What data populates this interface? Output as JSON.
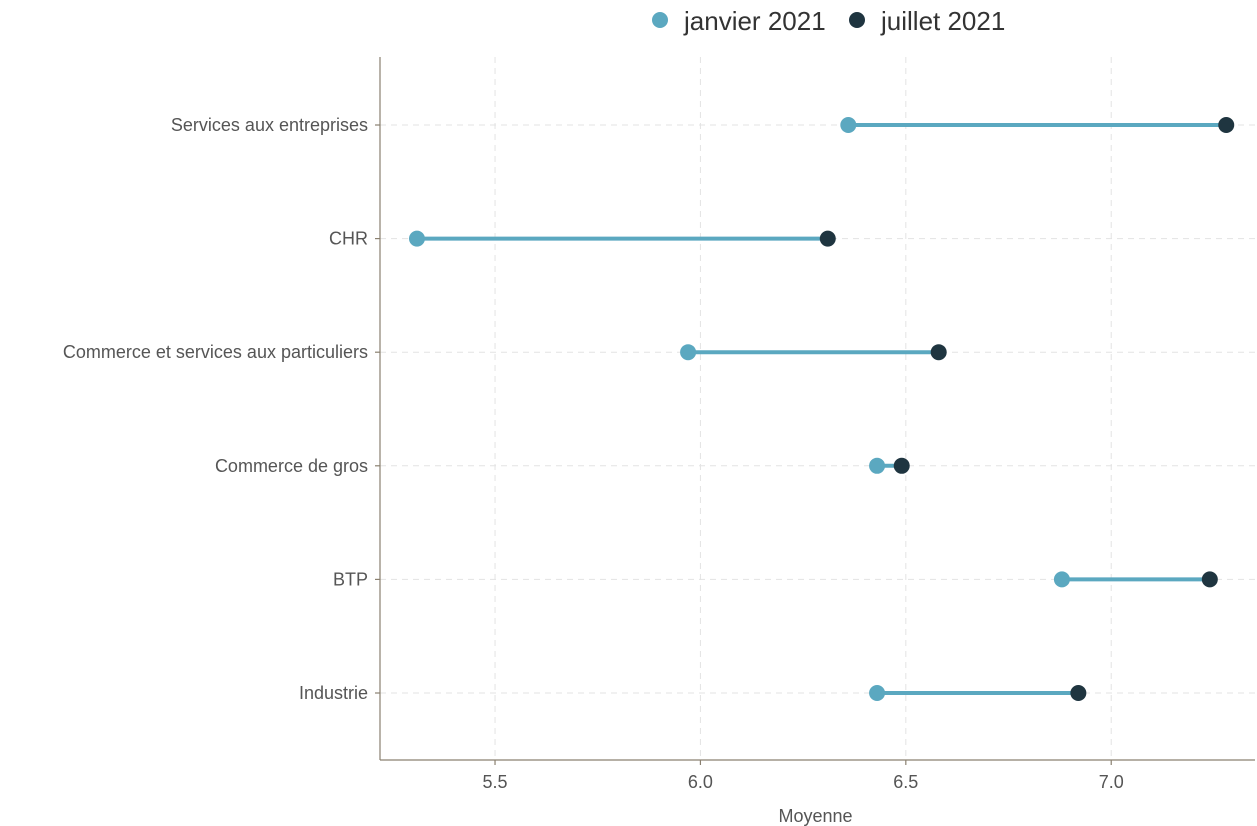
{
  "chart_data": {
    "type": "dumbbell",
    "categories": [
      "Services aux entreprises",
      "CHR",
      "Commerce et services aux particuliers",
      "Commerce de gros",
      "BTP",
      "Industrie"
    ],
    "series": [
      {
        "name": "janvier 2021",
        "color": "#5ba8c0",
        "values": [
          6.36,
          5.31,
          5.97,
          6.43,
          6.88,
          6.43
        ]
      },
      {
        "name": "juillet 2021",
        "color": "#1f3540",
        "values": [
          7.28,
          6.31,
          6.58,
          6.49,
          7.24,
          6.92
        ]
      }
    ],
    "segment_color": "#5ba8c0",
    "xlabel": "Moyenne",
    "ylabel": "",
    "xlim": [
      5.22,
      7.35
    ],
    "xticks": [
      5.5,
      6.0,
      6.5,
      7.0
    ],
    "xtick_labels": [
      "5.5",
      "6.0",
      "6.5",
      "7.0"
    ],
    "grid": true,
    "legend_position": "top"
  }
}
